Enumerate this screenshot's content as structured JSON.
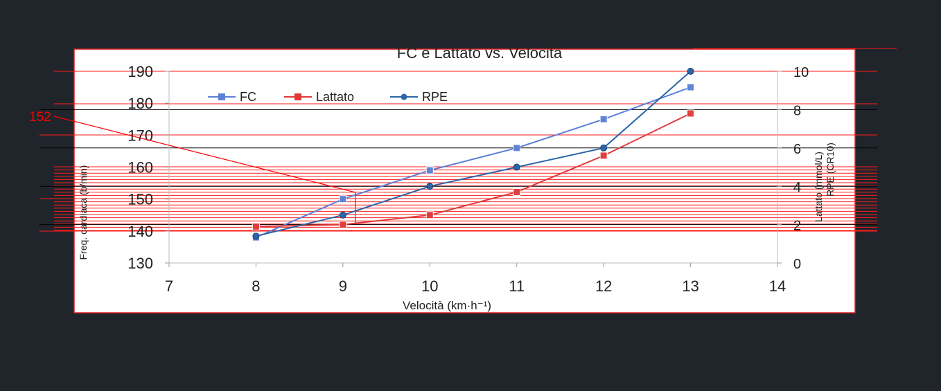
{
  "app": {
    "background": "#20252c"
  },
  "chart_data": {
    "type": "line",
    "title": "FC e Lattato vs. Velocità",
    "xlabel": "Velocità (km·h⁻¹)",
    "ylabel": "Freq. cardiaca (b/min)",
    "y2label_lines": [
      "Lattato (mmol/L)",
      "RPE (CR10)"
    ],
    "xlim": [
      7,
      14
    ],
    "ylim": [
      130,
      190
    ],
    "y2lim": [
      0,
      10
    ],
    "x_ticks": [
      "7",
      "8",
      "9",
      "10",
      "11",
      "12",
      "13",
      "14"
    ],
    "y_ticks": [
      "130",
      "140",
      "150",
      "160",
      "170",
      "180",
      "190"
    ],
    "y2_ticks": [
      "0",
      "2",
      "4",
      "6",
      "8",
      "10"
    ],
    "legend": [
      "FC",
      "Lattato",
      "RPE"
    ],
    "legend_position": "top-left",
    "series": [
      {
        "name": "FC",
        "axis": "left",
        "marker": "square",
        "color": "#5b7fd6",
        "x": [
          8,
          9,
          10,
          11,
          12,
          13
        ],
        "values": [
          138,
          150,
          159,
          166,
          175,
          185
        ]
      },
      {
        "name": "Lattato",
        "axis": "right",
        "marker": "square",
        "color": "#e03838",
        "x": [
          8,
          9,
          10,
          11,
          12,
          13
        ],
        "values": [
          1.9,
          2.0,
          2.5,
          3.7,
          5.6,
          7.8
        ]
      },
      {
        "name": "RPE",
        "axis": "right",
        "marker": "circle",
        "color": "#2a66a8",
        "x": [
          8,
          9,
          10,
          11,
          12,
          13
        ],
        "values": [
          1.4,
          2.5,
          4.0,
          5.0,
          6.0,
          10.0
        ]
      }
    ],
    "annotation": {
      "label": "152",
      "color": "#ff0000",
      "target_x": 9.15,
      "target_y": 152
    }
  }
}
